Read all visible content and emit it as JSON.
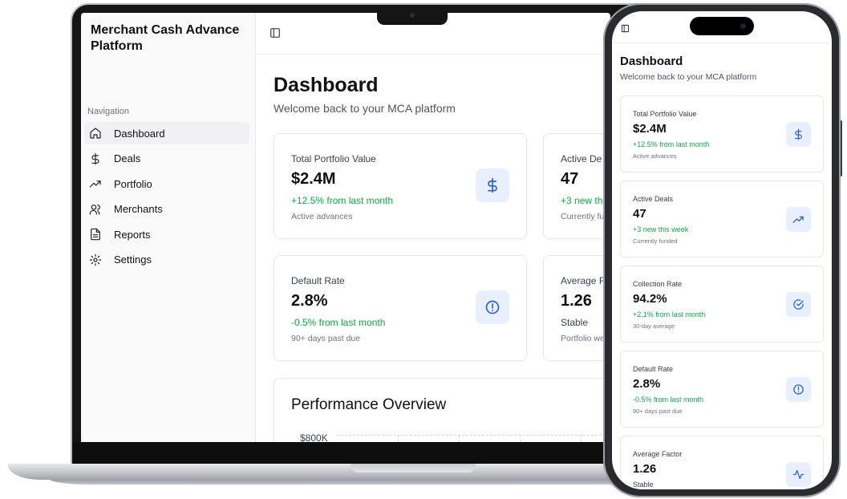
{
  "app": {
    "title": "Merchant Cash Advance Platform"
  },
  "sidebar": {
    "heading": "Navigation",
    "items": [
      {
        "label": "Dashboard",
        "icon": "home-icon"
      },
      {
        "label": "Deals",
        "icon": "dollar-icon"
      },
      {
        "label": "Portfolio",
        "icon": "trending-up-icon"
      },
      {
        "label": "Merchants",
        "icon": "users-icon"
      },
      {
        "label": "Reports",
        "icon": "file-text-icon"
      },
      {
        "label": "Settings",
        "icon": "gear-icon"
      }
    ]
  },
  "dashboard": {
    "title": "Dashboard",
    "subtitle": "Welcome back to your MCA platform"
  },
  "laptop_cards": [
    {
      "label": "Total Portfolio Value",
      "value": "$2.4M",
      "change": "+12.5% from last month",
      "note": "Active advances",
      "icon": "dollar-icon"
    },
    {
      "label": "Active De",
      "value": "47",
      "change": "+3 new th",
      "note": "Currently fu",
      "icon": "trending-up-icon"
    },
    {
      "label": "Default Rate",
      "value": "2.8%",
      "change": "-0.5% from last month",
      "note": "90+ days past due",
      "icon": "alert-circle-icon"
    },
    {
      "label": "Average F",
      "value": "1.26",
      "change": "Stable",
      "note": "Portfolio we",
      "icon": "activity-icon"
    }
  ],
  "performance": {
    "title": "Performance Overview",
    "y_tick_top": "$800K"
  },
  "mobile": {
    "title": "Dashboard",
    "subtitle": "Welcome back to your MCA platform",
    "cards": [
      {
        "label": "Total Portfolio Value",
        "value": "$2.4M",
        "change": "+12.5% from last month",
        "note": "Active advances",
        "icon": "dollar-icon"
      },
      {
        "label": "Active Deals",
        "value": "47",
        "change": "+3 new this week",
        "note": "Currently funded",
        "icon": "trending-up-icon"
      },
      {
        "label": "Collection Rate",
        "value": "94.2%",
        "change": "+2.1% from last month",
        "note": "30-day average",
        "icon": "check-circle-icon"
      },
      {
        "label": "Default Rate",
        "value": "2.8%",
        "change": "-0.5% from last month",
        "note": "90+ days past due",
        "icon": "alert-circle-icon"
      },
      {
        "label": "Average Factor",
        "value": "1.26",
        "change": "Stable",
        "note": "",
        "icon": "activity-icon"
      }
    ]
  },
  "colors": {
    "accent": "#2f5fd0",
    "icon_bg": "#e8efff",
    "positive": "#16a34a"
  }
}
